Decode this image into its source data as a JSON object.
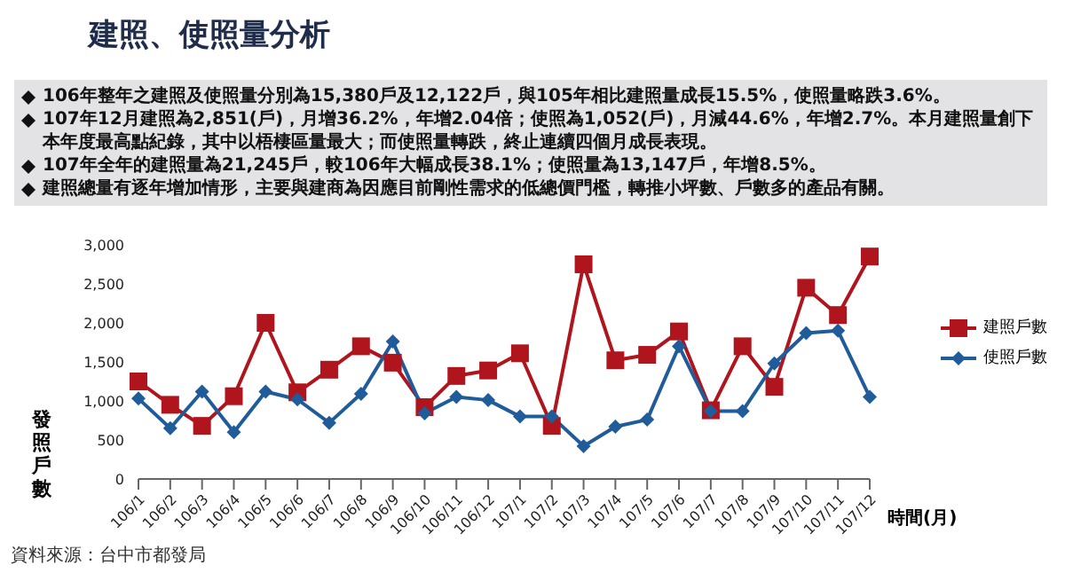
{
  "chart_data": {
    "type": "line",
    "title": "建照、使照量分析",
    "annotations": [
      "106年整年之建照及使照量分別為15,380戶及12,122戶，與105年相比建照量成長15.5%，使照量略跌3.6%。",
      "107年12月建照為2,851(戶)，月增36.2%，年增2.04倍；使照為1,052(戶)，月減44.6%，年增2.7%。本月建照量創下本年度最高點紀錄，其中以梧棲區量最大；而使照量轉跌，終止連續四個月成長表現。",
      "107年全年的建照量為21,245戶，較106年大幅成長38.1%；使照量為13,147戶，年增8.5%。",
      "建照總量有逐年增加情形，主要與建商為因應目前剛性需求的低總價門檻，轉推小坪數、戶數多的產品有關。",
      "資料來源：台中市都發局"
    ],
    "categories": [
      "106/1",
      "106/2",
      "106/3",
      "106/4",
      "106/5",
      "106/6",
      "106/7",
      "106/8",
      "106/9",
      "106/10",
      "106/11",
      "106/12",
      "107/1",
      "107/2",
      "107/3",
      "107/4",
      "107/5",
      "107/6",
      "107/7",
      "107/8",
      "107/9",
      "107/10",
      "107/11",
      "107/12"
    ],
    "series": [
      {
        "name": "建照戶數",
        "color": "#b0141c",
        "marker": "square",
        "values": [
          1250,
          950,
          680,
          1060,
          2000,
          1110,
          1400,
          1700,
          1490,
          920,
          1320,
          1390,
          1610,
          680,
          2750,
          1520,
          1590,
          1890,
          880,
          1700,
          1180,
          2450,
          2100,
          2850
        ]
      },
      {
        "name": "使照戶數",
        "color": "#1f5c99",
        "marker": "diamond",
        "values": [
          1030,
          650,
          1120,
          600,
          1120,
          1020,
          720,
          1090,
          1760,
          840,
          1050,
          1010,
          800,
          800,
          420,
          670,
          760,
          1700,
          870,
          870,
          1480,
          1870,
          1900,
          1050
        ]
      }
    ],
    "ylabel": "發照戶數",
    "xlabel": "時間(月)",
    "ylim": [
      0,
      3000
    ],
    "yticks": [
      0,
      500,
      {
        "value": 1000,
        "label": "1,000"
      },
      {
        "value": 1500,
        "label": "1,500"
      },
      {
        "value": 2000,
        "label": "2,000"
      },
      {
        "value": 2500,
        "label": "2,500"
      },
      {
        "value": 3000,
        "label": "3,000"
      }
    ],
    "legend": "right",
    "line_style": "solid"
  }
}
